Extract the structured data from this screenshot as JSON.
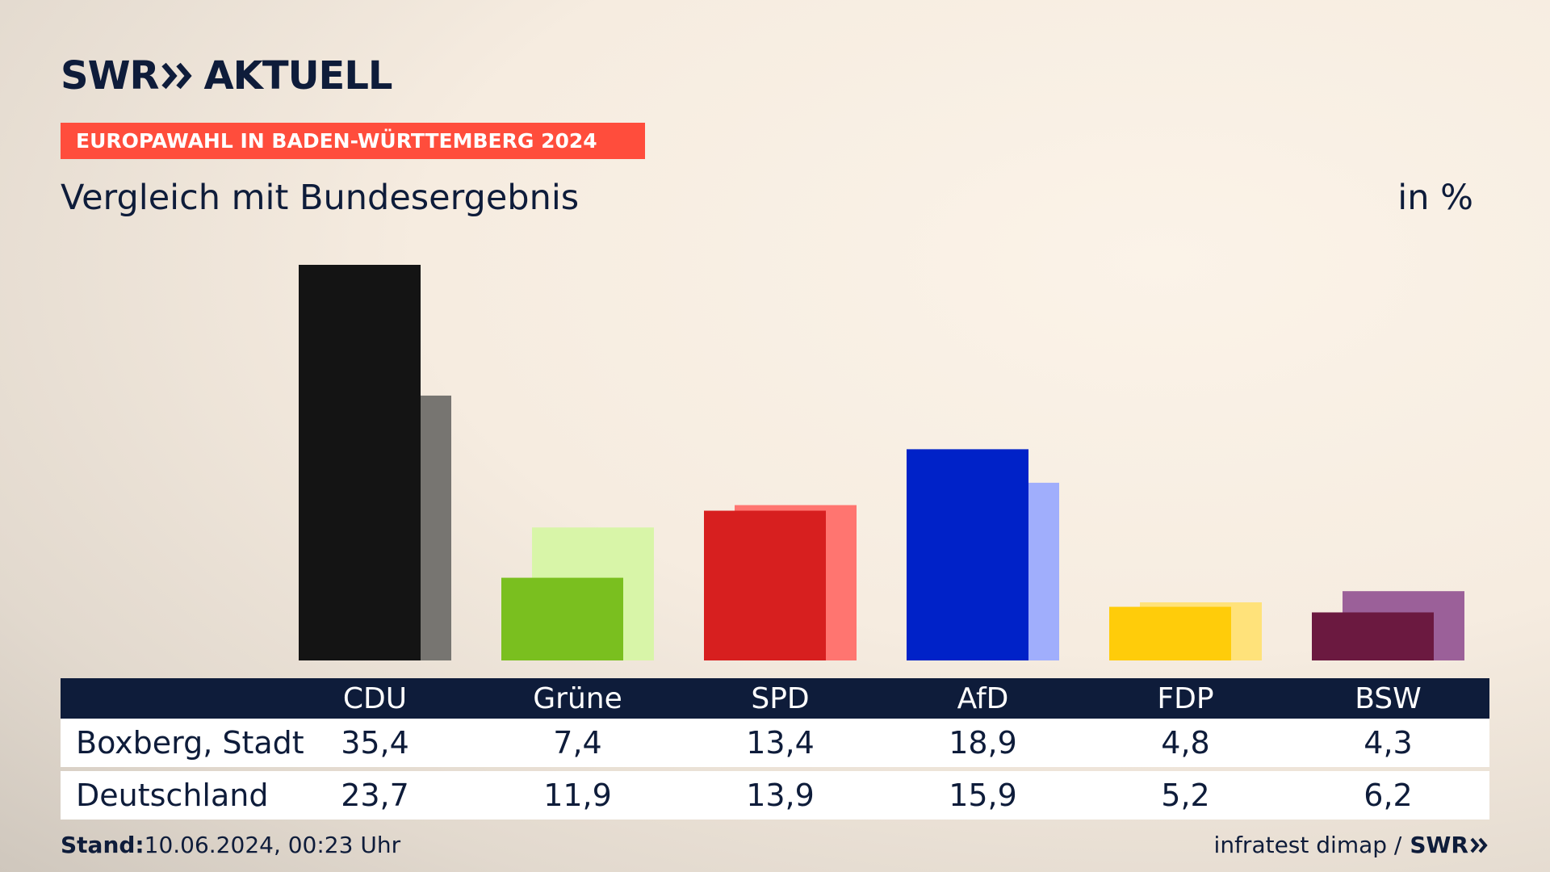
{
  "logo": {
    "swr": "SWR",
    "aktuell": "AKTUELL"
  },
  "banner": "EUROPAWAHL IN BADEN-WÜRTTEMBERG 2024",
  "subtitle": "Vergleich mit Bundesergebnis",
  "unit": "in %",
  "chart_data": {
    "type": "bar",
    "categories": [
      "CDU",
      "Grüne",
      "SPD",
      "AfD",
      "FDP",
      "BSW"
    ],
    "series": [
      {
        "name": "Boxberg, Stadt",
        "values": [
          35.4,
          7.4,
          13.4,
          18.9,
          4.8,
          4.3
        ],
        "colors": [
          "#141414",
          "#7abf1f",
          "#d71f1f",
          "#0022c8",
          "#ffcc0a",
          "#6b1940"
        ]
      },
      {
        "name": "Deutschland",
        "values": [
          23.7,
          11.9,
          13.9,
          15.9,
          5.2,
          6.2
        ],
        "colors": [
          "#777571",
          "#d8f5a8",
          "#ff7570",
          "#a0aefc",
          "#ffe27a",
          "#9b6099"
        ]
      }
    ],
    "ylim": [
      0,
      35.4
    ],
    "display": {
      "rows": [
        {
          "label": "Boxberg, Stadt",
          "values": [
            "35,4",
            "7,4",
            "13,4",
            "18,9",
            "4,8",
            "4,3"
          ]
        },
        {
          "label": "Deutschland",
          "values": [
            "23,7",
            "11,9",
            "13,9",
            "15,9",
            "5,2",
            "6,2"
          ]
        }
      ]
    }
  },
  "footer": {
    "stand_label": "Stand:",
    "stand_value": "10.06.2024, 00:23 Uhr",
    "source": "infratest dimap /",
    "source_logo": "SWR"
  }
}
